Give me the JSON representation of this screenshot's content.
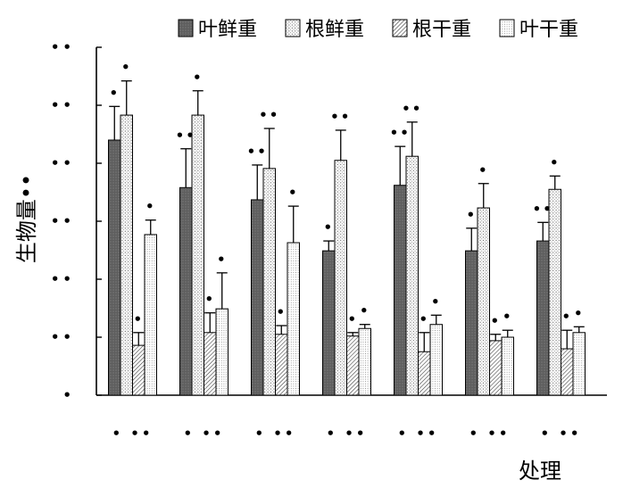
{
  "chart_data": {
    "type": "bar",
    "title": "",
    "ylabel": "生物量••",
    "xlabel": "处理",
    "ylim": [
      0,
      6
    ],
    "yticks": [
      0,
      1,
      2,
      3,
      4,
      5,
      6
    ],
    "ytick_labels": [
      "•",
      "••",
      "••",
      "••",
      "••",
      "••",
      "••"
    ],
    "categories": [
      "• ••",
      "• ••",
      "• ••",
      "• ••",
      "• ••",
      "• ••",
      "• ••"
    ],
    "grid": false,
    "legend_position": "top",
    "series": [
      {
        "name": "叶鲜重",
        "color": "#5e5e5e",
        "values": [
          4.4,
          3.58,
          3.37,
          2.49,
          3.62,
          2.49,
          2.66
        ],
        "errors": [
          0.58,
          0.67,
          0.6,
          0.17,
          0.67,
          0.39,
          0.32
        ],
        "labels": [
          "•",
          "••",
          "••",
          "•",
          "••",
          "•",
          "••"
        ]
      },
      {
        "name": "根鲜重",
        "color": "#ffffff",
        "values": [
          4.83,
          4.83,
          3.91,
          4.05,
          4.12,
          3.23,
          3.55
        ],
        "errors": [
          0.59,
          0.42,
          0.69,
          0.52,
          0.59,
          0.42,
          0.23
        ],
        "labels": [
          "•",
          "•",
          "••",
          "••",
          "••",
          "•",
          "•"
        ]
      },
      {
        "name": "根干重",
        "color": "#ffffff",
        "values": [
          0.86,
          1.08,
          1.05,
          1.02,
          0.75,
          0.94,
          0.8
        ],
        "errors": [
          0.22,
          0.34,
          0.15,
          0.06,
          0.33,
          0.11,
          0.32
        ],
        "labels": [
          "•",
          "•",
          "•",
          "•",
          "•",
          "•",
          "•"
        ]
      },
      {
        "name": "叶干重",
        "color": "#ffffff",
        "values": [
          2.77,
          1.49,
          2.63,
          1.15,
          1.22,
          1.0,
          1.08
        ],
        "errors": [
          0.25,
          0.62,
          0.63,
          0.07,
          0.16,
          0.12,
          0.1
        ],
        "labels": [
          "•",
          "•",
          "•",
          "•",
          "•",
          "•",
          "•"
        ]
      }
    ]
  }
}
